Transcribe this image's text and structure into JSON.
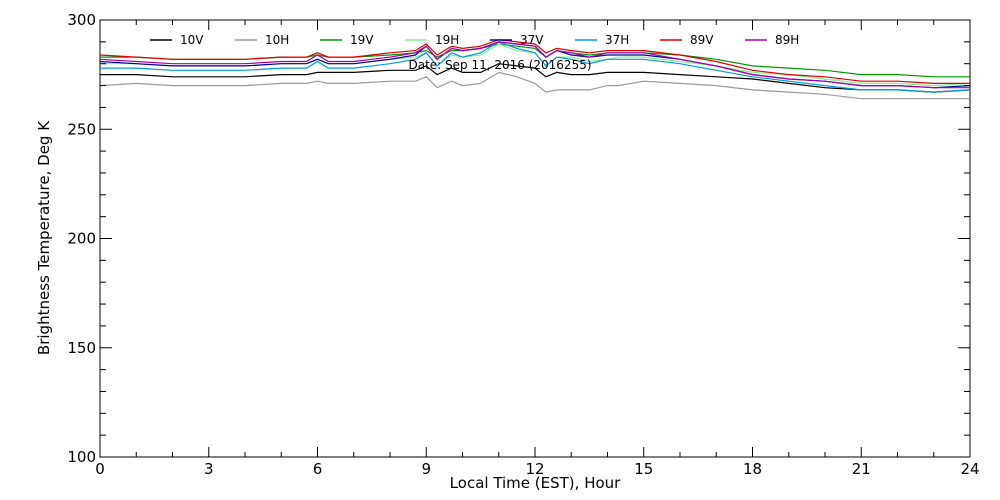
{
  "chart_data": {
    "type": "line",
    "title": "",
    "annotation": "Date: Sep 11, 2016 (2016255)",
    "xlabel": "Local Time (EST), Hour",
    "ylabel": "Brightness Temperature, Deg K",
    "xlim": [
      0,
      24
    ],
    "ylim": [
      100,
      300
    ],
    "xticks": [
      0,
      3,
      6,
      9,
      12,
      15,
      18,
      21,
      24
    ],
    "yticks": [
      100,
      150,
      200,
      250,
      300
    ],
    "grid": false,
    "legend_position": "top",
    "x": [
      0,
      1,
      2,
      3,
      4,
      5,
      5.7,
      6,
      6.3,
      7,
      8,
      8.7,
      9,
      9.3,
      9.7,
      10,
      10.5,
      11,
      11.5,
      12,
      12.3,
      12.6,
      13,
      13.5,
      14,
      14.3,
      15,
      16,
      17,
      18,
      19,
      20,
      21,
      22,
      23,
      24
    ],
    "series": [
      {
        "name": "10V",
        "color": "#000000",
        "values": [
          275,
          275,
          274,
          274,
          274,
          275,
          275,
          276,
          276,
          276,
          277,
          277,
          279,
          275,
          278,
          276,
          276,
          280,
          279,
          278,
          274,
          276,
          275,
          275,
          276,
          276,
          276,
          275,
          274,
          273,
          271,
          269,
          268,
          268,
          267,
          268
        ]
      },
      {
        "name": "10H",
        "color": "#999999",
        "values": [
          270,
          271,
          270,
          270,
          270,
          271,
          271,
          272,
          271,
          271,
          272,
          272,
          274,
          269,
          272,
          270,
          271,
          276,
          274,
          271,
          267,
          268,
          268,
          268,
          270,
          270,
          272,
          271,
          270,
          268,
          267,
          266,
          264,
          264,
          264,
          264
        ]
      },
      {
        "name": "19V",
        "color": "#009900",
        "values": [
          283,
          283,
          282,
          282,
          282,
          283,
          283,
          284,
          283,
          283,
          284,
          285,
          286,
          283,
          286,
          286,
          287,
          289,
          288,
          287,
          283,
          286,
          285,
          284,
          285,
          285,
          285,
          284,
          282,
          279,
          278,
          277,
          275,
          275,
          274,
          274
        ]
      },
      {
        "name": "19H",
        "color": "#88ee88",
        "values": [
          280,
          280,
          279,
          279,
          279,
          280,
          280,
          282,
          280,
          280,
          282,
          283,
          285,
          279,
          284,
          283,
          284,
          289,
          286,
          285,
          279,
          283,
          283,
          281,
          282,
          283,
          283,
          281,
          279,
          276,
          275,
          273,
          271,
          271,
          270,
          271
        ]
      },
      {
        "name": "37V",
        "color": "#000099",
        "values": [
          281,
          280,
          279,
          279,
          279,
          280,
          280,
          282,
          280,
          280,
          282,
          284,
          288,
          282,
          287,
          286,
          287,
          290,
          289,
          288,
          283,
          286,
          284,
          283,
          284,
          284,
          284,
          282,
          279,
          275,
          273,
          272,
          270,
          270,
          269,
          270
        ]
      },
      {
        "name": "37H",
        "color": "#0099dd",
        "values": [
          278,
          278,
          277,
          277,
          277,
          278,
          278,
          281,
          278,
          278,
          280,
          282,
          285,
          279,
          285,
          283,
          285,
          290,
          287,
          285,
          279,
          283,
          282,
          280,
          282,
          282,
          282,
          280,
          277,
          274,
          272,
          270,
          268,
          268,
          267,
          268
        ]
      },
      {
        "name": "89V",
        "color": "#dd0000",
        "values": [
          284,
          283,
          282,
          282,
          282,
          283,
          283,
          285,
          283,
          283,
          285,
          286,
          289,
          284,
          288,
          287,
          288,
          291,
          290,
          289,
          285,
          287,
          286,
          285,
          286,
          286,
          286,
          284,
          281,
          277,
          275,
          274,
          272,
          272,
          271,
          271
        ]
      },
      {
        "name": "89H",
        "color": "#aa00aa",
        "values": [
          282,
          281,
          280,
          280,
          280,
          281,
          281,
          284,
          281,
          281,
          283,
          285,
          288,
          282,
          287,
          286,
          287,
          290,
          289,
          288,
          283,
          286,
          285,
          283,
          285,
          285,
          285,
          282,
          279,
          275,
          273,
          272,
          270,
          270,
          269,
          269
        ]
      }
    ]
  }
}
